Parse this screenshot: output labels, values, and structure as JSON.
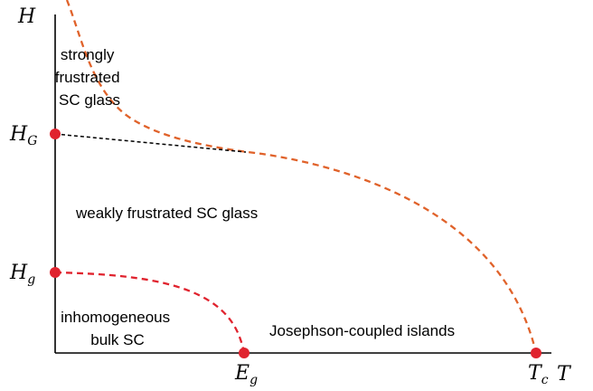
{
  "axes": {
    "y_label": "H",
    "x_label": "T"
  },
  "markers": {
    "h_glass_strong": {
      "main": "H",
      "sub": "G"
    },
    "h_glass_weak": {
      "main": "H",
      "sub": "g"
    },
    "e_g": {
      "main": "E",
      "sub": "g"
    },
    "t_c": {
      "main": "T",
      "sub": "c"
    }
  },
  "regions": {
    "strongly_frustrated": [
      "strongly",
      "frustrated",
      "SC glass"
    ],
    "weakly_frustrated": "weakly frustrated SC glass",
    "inhomogeneous": [
      "inhomogeneous",
      "bulk SC"
    ],
    "josephson": "Josephson-coupled islands"
  },
  "colors": {
    "orange_boundary": "#e0622a",
    "red_boundary": "#e0232e",
    "black_boundary": "#000000",
    "point": "#e0232e"
  }
}
